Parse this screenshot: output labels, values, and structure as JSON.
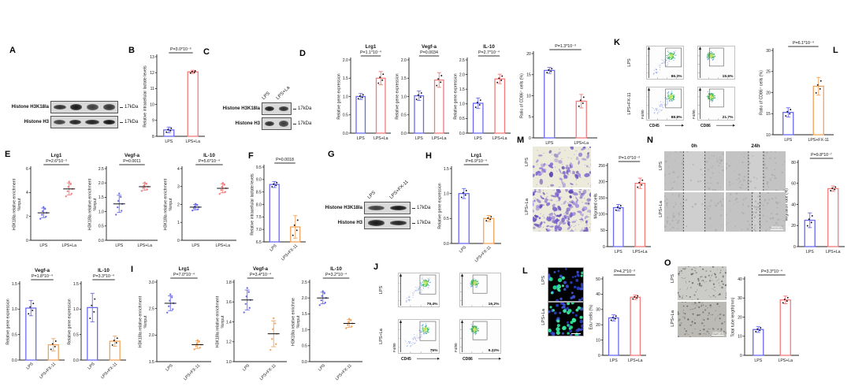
{
  "panel_letters": {
    "a": "A",
    "b": "B",
    "c": "C",
    "d": "D",
    "e": "E",
    "f": "F",
    "g": "G",
    "h": "H",
    "i": "I",
    "j": "J",
    "k": "K",
    "l_top": "L",
    "m": "M",
    "n": "N",
    "l_bottom": "L",
    "o": "O"
  },
  "colors": {
    "bar_blue": "#6a6af0",
    "bar_red": "#f57a7a",
    "bar_orange": "#f3a259"
  },
  "blots": {
    "a": {
      "rows": [
        {
          "label": "Histone H3K18la",
          "kda": "17kDa"
        },
        {
          "label": "Histone H3",
          "kda": "17kDa"
        }
      ]
    },
    "c": {
      "lanes": [
        "LPS",
        "LPS+La"
      ],
      "rows": [
        {
          "label": "Histone H3K18la",
          "kda": "17kDa"
        },
        {
          "label": "Histone H3",
          "kda": "17kDa"
        }
      ]
    },
    "g": {
      "lanes": [
        "LPS",
        "LPS+FX-11"
      ],
      "rows": [
        {
          "label": "Histone H3K18la",
          "kda": "17kDa"
        },
        {
          "label": "Histone H3",
          "kda": "17kDa"
        }
      ]
    }
  },
  "micrographs": {
    "m": {
      "rows": [
        "LPS",
        "LPS+La"
      ]
    },
    "n": {
      "rows": [
        "LPS",
        "LPS+La"
      ],
      "cols": [
        "0h",
        "24h"
      ],
      "scale": "500μm"
    },
    "l": {
      "rows": [
        "LPS",
        "LPS+La"
      ]
    },
    "o": {
      "rows": [
        "LPS",
        "LPS+La"
      ],
      "scale": "200μm"
    }
  },
  "flows": {
    "k": {
      "rows": [
        "LPS",
        "LPS+FX-11"
      ],
      "ylab": "F4/80",
      "cols": [
        {
          "xlab": "CD45",
          "pcts": [
            "86.3%",
            "88.8%"
          ]
        },
        {
          "xlab": "CD86",
          "pcts": [
            "15.6%",
            "21.7%"
          ]
        }
      ]
    },
    "j": {
      "rows": [
        "LPS",
        "LPS+La"
      ],
      "ylab": "F4/80",
      "cols": [
        {
          "xlab": "CD45",
          "pcts": [
            "79.4%",
            "75%"
          ]
        },
        {
          "xlab": "CD86",
          "pcts": [
            "16.2%",
            "9.22%"
          ]
        }
      ]
    }
  },
  "charts": {
    "b": {
      "type": "bar",
      "p": "P=3.0*10⁻⁶",
      "ylab": [
        "Relative intracellular lactate levels"
      ],
      "ymin": 8,
      "ymax": 13,
      "ticks": [
        [
          8,
          "8"
        ],
        [
          9,
          "9"
        ],
        [
          10,
          "10"
        ],
        [
          11,
          "11"
        ],
        [
          12,
          "12"
        ],
        [
          13,
          "13"
        ]
      ],
      "cats": [
        "LPS",
        "LPS+La"
      ],
      "cols": [
        "blue",
        "red"
      ],
      "vals": [
        8.4,
        12.05
      ],
      "errs": [
        0.18,
        0.1
      ],
      "rot": false
    },
    "d1": {
      "type": "bar",
      "title": "Lrg1",
      "p": "P=1.1*10⁻⁴",
      "ylab": [
        "Relative gene expression"
      ],
      "ymin": 0,
      "ymax": 2,
      "ticks": [
        [
          0,
          "0.0"
        ],
        [
          0.5,
          "0.5"
        ],
        [
          1,
          "1.0"
        ],
        [
          1.5,
          "1.5"
        ],
        [
          2,
          "2.0"
        ]
      ],
      "cats": [
        "LPS",
        "LPS+La"
      ],
      "cols": [
        "blue",
        "red"
      ],
      "vals": [
        1.0,
        1.5
      ],
      "errs": [
        0.08,
        0.18
      ],
      "rot": false
    },
    "d2": {
      "type": "bar",
      "title": "Vegf-a",
      "p": "P=0.0034",
      "ylab": [
        "Relative gene expression"
      ],
      "ymin": 0,
      "ymax": 2,
      "ticks": [
        [
          0,
          "0.0"
        ],
        [
          0.5,
          "0.5"
        ],
        [
          1,
          "1.0"
        ],
        [
          1.5,
          "1.5"
        ],
        [
          2,
          "2.0"
        ]
      ],
      "cats": [
        "LPS",
        "LPS+La"
      ],
      "cols": [
        "blue",
        "red"
      ],
      "vals": [
        1.02,
        1.45
      ],
      "errs": [
        0.13,
        0.2
      ],
      "rot": false
    },
    "d3": {
      "type": "bar",
      "title": "IL-10",
      "p": "P=2.7*10⁻⁴",
      "ylab": [
        "Relative gene expression"
      ],
      "ymin": 0,
      "ymax": 2.5,
      "ticks": [
        [
          0,
          "0.0"
        ],
        [
          0.5,
          "0.5"
        ],
        [
          1,
          "1.0"
        ],
        [
          1.5,
          "1.5"
        ],
        [
          2,
          "2.0"
        ],
        [
          2.5,
          "2.5"
        ]
      ],
      "cats": [
        "LPS",
        "LPS+La"
      ],
      "cols": [
        "blue",
        "red"
      ],
      "vals": [
        1.02,
        1.85
      ],
      "errs": [
        0.18,
        0.16
      ],
      "rot": false
    },
    "cd86a": {
      "type": "bar",
      "p": "P=1.3*10⁻³",
      "ylab": [
        "Ratio of CD86⁺ cells (%)"
      ],
      "ymin": 0,
      "ymax": 20,
      "ticks": [
        [
          0,
          "0"
        ],
        [
          5,
          "5"
        ],
        [
          10,
          "10"
        ],
        [
          15,
          "15"
        ],
        [
          20,
          "20"
        ]
      ],
      "cats": [
        "LPS",
        "LPS+La"
      ],
      "cols": [
        "blue",
        "red"
      ],
      "vals": [
        16,
        8.7
      ],
      "errs": [
        0.7,
        1.6
      ],
      "rot": false
    },
    "ltop": {
      "type": "bar",
      "p": "P=6.1*10⁻⁴",
      "ylab": [
        "Ratio of CD86⁺ cells (%)"
      ],
      "ymin": 10,
      "ymax": 30,
      "ticks": [
        [
          10,
          "10"
        ],
        [
          15,
          "15"
        ],
        [
          20,
          "20"
        ],
        [
          25,
          "25"
        ],
        [
          30,
          "30"
        ]
      ],
      "cats": [
        "LPS",
        "LPS+FX-11"
      ],
      "cols": [
        "blue",
        "orange"
      ],
      "vals": [
        15.3,
        21.5
      ],
      "errs": [
        1.1,
        2.1
      ],
      "rot": false
    },
    "e1": {
      "type": "dot",
      "title": "Lrg1",
      "p": "P=2.6*10⁻³",
      "ylab": [
        "H3K18la relative enrichment",
        "%input"
      ],
      "ymin": 0,
      "ymax": 6,
      "ticks": [
        [
          0,
          "0"
        ],
        [
          2,
          "2"
        ],
        [
          4,
          "4"
        ],
        [
          6,
          "6"
        ]
      ],
      "cats": [
        "LPS",
        "LPS+La"
      ],
      "cols": [
        "blue",
        "red"
      ],
      "means": [
        2.3,
        4.3
      ],
      "sds": [
        0.4,
        0.5
      ],
      "rot": false
    },
    "e2": {
      "type": "dot",
      "title": "Vegf-a",
      "p": "P=0.0011",
      "ylab": [
        "H3K18la relative enrichment",
        "%input"
      ],
      "ymin": 0,
      "ymax": 2.5,
      "ticks": [
        [
          0,
          "0.0"
        ],
        [
          0.5,
          "0.5"
        ],
        [
          1,
          "1.0"
        ],
        [
          1.5,
          "1.5"
        ],
        [
          2,
          "2.0"
        ],
        [
          2.5,
          "2.5"
        ]
      ],
      "cats": [
        "LPS",
        "LPS+La"
      ],
      "cols": [
        "blue",
        "red"
      ],
      "means": [
        1.27,
        1.87
      ],
      "sds": [
        0.3,
        0.12
      ],
      "rot": false
    },
    "e3": {
      "type": "dot",
      "title": "IL-10",
      "p": "P=5.6*10⁻⁴",
      "ylab": [
        "H3K18la relative enrichment",
        "%input"
      ],
      "ymin": 0,
      "ymax": 4,
      "ticks": [
        [
          0,
          "0"
        ],
        [
          1,
          "1"
        ],
        [
          2,
          "2"
        ],
        [
          3,
          "3"
        ],
        [
          4,
          "4"
        ]
      ],
      "cats": [
        "LPS",
        "LPS+La"
      ],
      "cols": [
        "blue",
        "red"
      ],
      "means": [
        1.85,
        2.9
      ],
      "sds": [
        0.15,
        0.25
      ],
      "rot": false
    },
    "f": {
      "type": "bar",
      "p": "P=0.0018",
      "ylab": [
        "Relative intracellular lactate levels"
      ],
      "ymin": 6.5,
      "ymax": 9.5,
      "ticks": [
        [
          6.5,
          "6.5"
        ],
        [
          7,
          "7.0"
        ],
        [
          7.5,
          "7.5"
        ],
        [
          8,
          "8.0"
        ],
        [
          8.5,
          "8.5"
        ],
        [
          9,
          "9.0"
        ],
        [
          9.5,
          "9.5"
        ]
      ],
      "cats": [
        "LPS",
        "LPS+FX-11"
      ],
      "cols": [
        "blue",
        "orange"
      ],
      "vals": [
        8.8,
        7.1
      ],
      "errs": [
        0.12,
        0.45
      ],
      "rot": true
    },
    "h": {
      "type": "bar",
      "title": "Lrg1",
      "p": "P=6.9*10⁻⁴",
      "ylab": [
        "Relative gene expression"
      ],
      "ymin": 0,
      "ymax": 1.5,
      "ticks": [
        [
          0,
          "0.0"
        ],
        [
          0.5,
          "0.5"
        ],
        [
          1,
          "1.0"
        ],
        [
          1.5,
          "1.5"
        ]
      ],
      "cats": [
        "LPS",
        "LPS+FX-11"
      ],
      "cols": [
        "blue",
        "orange"
      ],
      "vals": [
        1.0,
        0.5
      ],
      "errs": [
        0.1,
        0.06
      ],
      "rot": true
    },
    "mchart": {
      "type": "bar",
      "p": "P=1.0*10⁻³",
      "ylab": [
        "Migrated cells"
      ],
      "ymin": 0,
      "ymax": 250,
      "ticks": [
        [
          0,
          "0"
        ],
        [
          50,
          "50"
        ],
        [
          100,
          "100"
        ],
        [
          150,
          "150"
        ],
        [
          200,
          "200"
        ],
        [
          250,
          "250"
        ]
      ],
      "cats": [
        "LPS",
        "LPS+La"
      ],
      "cols": [
        "blue",
        "red"
      ],
      "vals": [
        120,
        195
      ],
      "errs": [
        10,
        16
      ],
      "rot": false
    },
    "nchart": {
      "type": "bar",
      "p": "P=9.8*10⁻⁷",
      "ylab": [
        "Migration rate (%)"
      ],
      "ymin": 0,
      "ymax": 80,
      "ticks": [
        [
          0,
          "0"
        ],
        [
          20,
          "20"
        ],
        [
          40,
          "40"
        ],
        [
          60,
          "60"
        ],
        [
          80,
          "80"
        ]
      ],
      "cats": [
        "LPS",
        "LPS+La"
      ],
      "cols": [
        "blue",
        "red"
      ],
      "vals": [
        25,
        55
      ],
      "errs": [
        7,
        2.5
      ],
      "rot": false
    },
    "v2": {
      "type": "bar",
      "title": "Vegf-a",
      "p": "P=1.8*10⁻⁴",
      "ylab": [
        "Relative gene expression"
      ],
      "ymin": 0,
      "ymax": 1.5,
      "ticks": [
        [
          0,
          "0.0"
        ],
        [
          0.5,
          "0.5"
        ],
        [
          1,
          "1.0"
        ],
        [
          1.5,
          "1.5"
        ]
      ],
      "cats": [
        "LPS",
        "LPS+FX-11"
      ],
      "cols": [
        "blue",
        "orange"
      ],
      "vals": [
        1.02,
        0.3
      ],
      "errs": [
        0.15,
        0.12
      ],
      "rot": true
    },
    "il2": {
      "type": "bar",
      "title": "IL-10",
      "p": "P=3.3*10⁻⁴",
      "ylab": [
        "Relative gene expression"
      ],
      "ymin": 0,
      "ymax": 1.5,
      "ticks": [
        [
          0,
          "0.0"
        ],
        [
          0.5,
          "0.5"
        ],
        [
          1,
          "1.0"
        ],
        [
          1.5,
          "1.5"
        ]
      ],
      "cats": [
        "LPS",
        "LPS+FX-11"
      ],
      "cols": [
        "blue",
        "orange"
      ],
      "vals": [
        1.03,
        0.37
      ],
      "errs": [
        0.28,
        0.1
      ],
      "rot": true
    },
    "i1": {
      "type": "dot",
      "title": "Lrg1",
      "p": "P=7.0*10⁻⁴",
      "ylab": [
        "H3K18la relative enrichment",
        "%input"
      ],
      "ymin": 1.5,
      "ymax": 3,
      "ticks": [
        [
          1.5,
          "1.5"
        ],
        [
          2,
          "2.0"
        ],
        [
          2.5,
          "2.5"
        ],
        [
          3,
          "3.0"
        ]
      ],
      "cats": [
        "LPS",
        "LPS+FX-11"
      ],
      "cols": [
        "blue",
        "orange"
      ],
      "means": [
        2.6,
        1.82
      ],
      "sds": [
        0.14,
        0.07
      ],
      "rot": true
    },
    "i2": {
      "type": "dot",
      "title": "Vegf-a",
      "p": "P=3.4*10⁻⁴",
      "ylab": [
        "H3K18la relative enrichment",
        "%input"
      ],
      "ymin": 1,
      "ymax": 1.8,
      "ticks": [
        [
          1,
          "1.0"
        ],
        [
          1.2,
          "1.2"
        ],
        [
          1.4,
          "1.4"
        ],
        [
          1.6,
          "1.6"
        ],
        [
          1.8,
          "1.8"
        ]
      ],
      "cats": [
        "LPS",
        "LPS+FX-11"
      ],
      "cols": [
        "blue",
        "orange"
      ],
      "means": [
        1.62,
        1.28
      ],
      "sds": [
        0.1,
        0.13
      ],
      "rot": true
    },
    "i3": {
      "type": "dot",
      "title": "IL-10",
      "p": "P=3.2*10⁻⁴",
      "ylab": [
        "H3K18la relative enrichme",
        "%input"
      ],
      "ymin": 0,
      "ymax": 2.5,
      "ticks": [
        [
          0,
          "0.0"
        ],
        [
          0.5,
          "0.5"
        ],
        [
          1,
          "1.0"
        ],
        [
          1.5,
          "1.5"
        ],
        [
          2,
          "2.0"
        ],
        [
          2.5,
          "2.5"
        ]
      ],
      "cats": [
        "LPS",
        "LPS+FX-11"
      ],
      "cols": [
        "blue",
        "orange"
      ],
      "means": [
        2.0,
        1.2
      ],
      "sds": [
        0.18,
        0.12
      ],
      "rot": true
    },
    "edu": {
      "type": "bar",
      "p": "P=4.2*10⁻³",
      "ylab": [
        "Edu⁺cells (%)"
      ],
      "ymin": 0,
      "ymax": 50,
      "ticks": [
        [
          0,
          "0"
        ],
        [
          10,
          "10"
        ],
        [
          20,
          "20"
        ],
        [
          30,
          "30"
        ],
        [
          40,
          "40"
        ],
        [
          50,
          "50"
        ]
      ],
      "cats": [
        "LPS",
        "LPS+La"
      ],
      "cols": [
        "blue",
        "red"
      ],
      "vals": [
        24.5,
        38
      ],
      "errs": [
        2,
        1.5
      ],
      "rot": false
    },
    "ochart": {
      "type": "bar",
      "p": "P=3.3*10⁻⁴",
      "ylab": [
        "Total tube length(mm)"
      ],
      "ymin": 0,
      "ymax": 40,
      "ticks": [
        [
          0,
          "0"
        ],
        [
          10,
          "10"
        ],
        [
          20,
          "20"
        ],
        [
          30,
          "30"
        ],
        [
          40,
          "40"
        ]
      ],
      "cats": [
        "LPS",
        "LPS+La"
      ],
      "cols": [
        "blue",
        "red"
      ],
      "vals": [
        13.5,
        29
      ],
      "errs": [
        1.5,
        2
      ],
      "rot": false
    }
  }
}
